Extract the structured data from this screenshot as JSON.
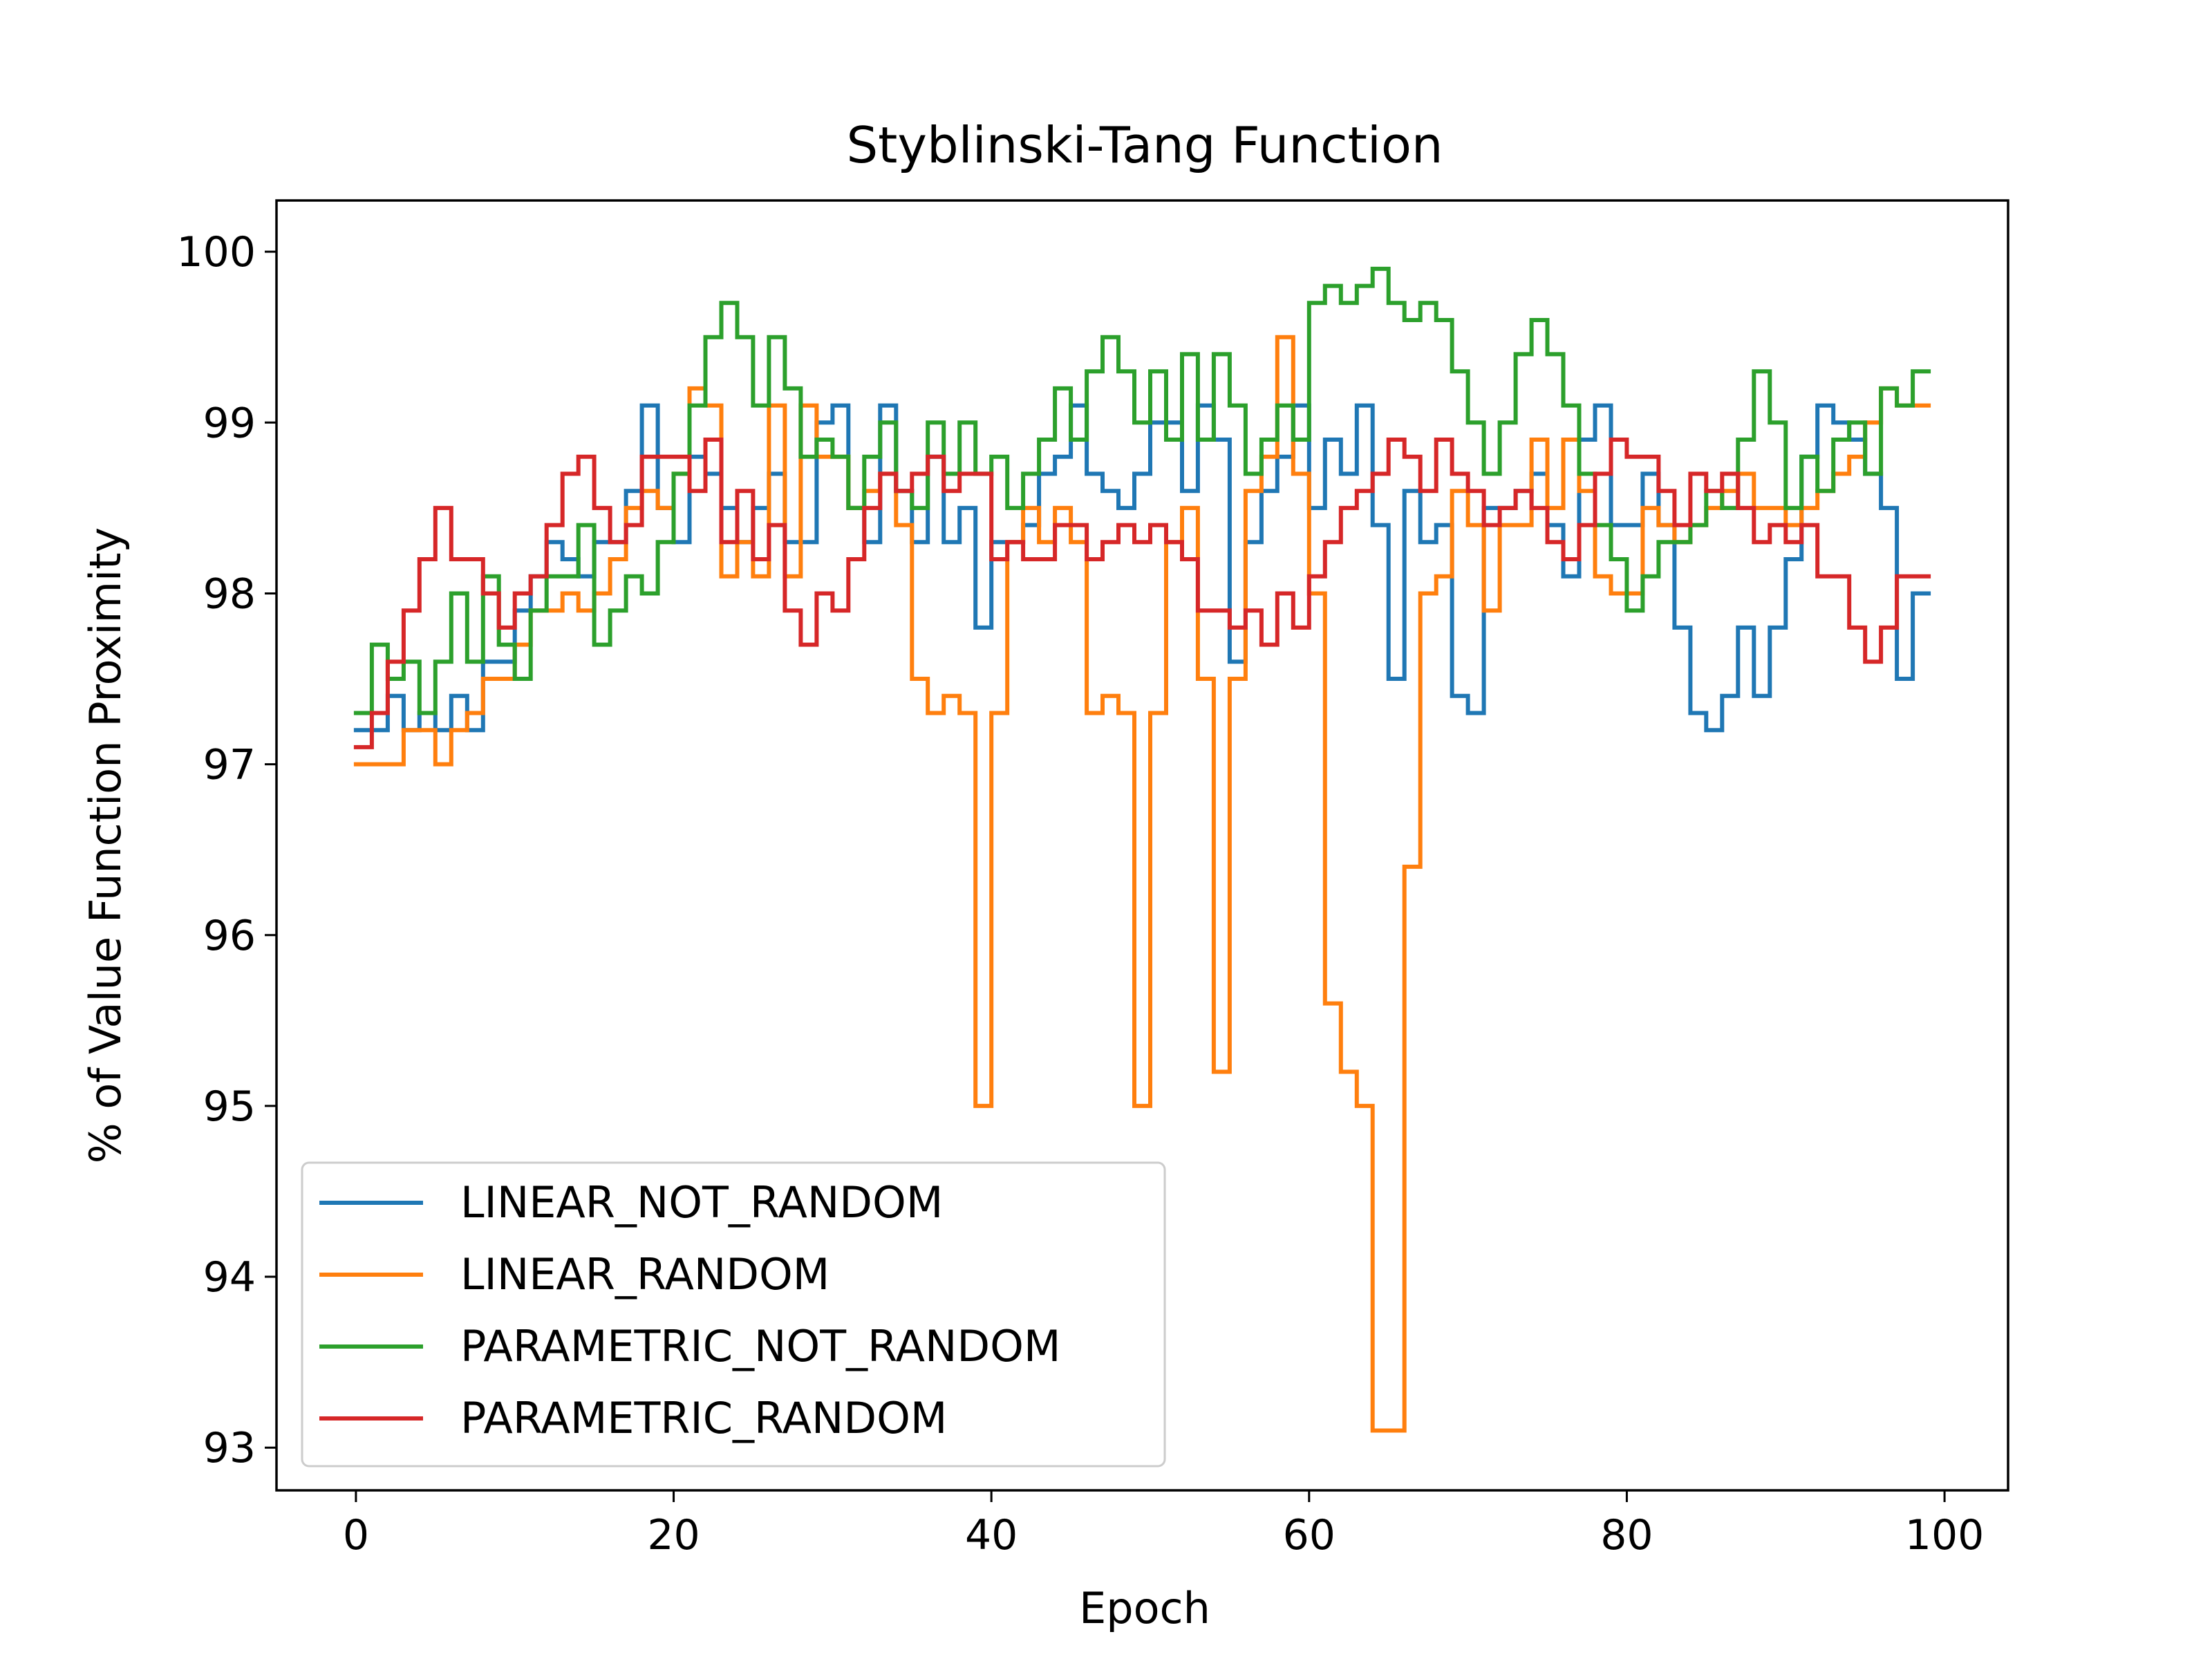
{
  "chart_data": {
    "type": "line",
    "step": true,
    "title": "Styblinski-Tang Function",
    "xlabel": "Epoch",
    "ylabel": "% of Value Function Proximity",
    "xlim": [
      -5,
      104
    ],
    "ylim": [
      92.75,
      100.3
    ],
    "x_ticks": [
      0,
      20,
      40,
      60,
      80,
      100
    ],
    "y_ticks": [
      93,
      94,
      95,
      96,
      97,
      98,
      99,
      100
    ],
    "grid": false,
    "legend_position": "lower-left",
    "series": [
      {
        "name": "LINEAR_NOT_RANDOM",
        "color": "#1f77b4",
        "values": [
          97.2,
          97.2,
          97.4,
          97.2,
          97.3,
          97.2,
          97.4,
          97.2,
          97.6,
          97.6,
          97.9,
          98.1,
          98.3,
          98.2,
          98.1,
          98.3,
          98.3,
          98.6,
          99.1,
          98.5,
          98.3,
          98.8,
          98.7,
          98.5,
          98.3,
          98.5,
          98.7,
          98.3,
          98.3,
          99.0,
          99.1,
          98.5,
          98.3,
          99.1,
          98.6,
          98.3,
          98.8,
          98.3,
          98.5,
          97.8,
          98.3,
          98.3,
          98.4,
          98.7,
          98.8,
          99.1,
          98.7,
          98.6,
          98.5,
          98.7,
          99.0,
          99.0,
          98.6,
          99.1,
          98.9,
          97.6,
          98.3,
          98.6,
          98.8,
          99.1,
          98.5,
          98.9,
          98.7,
          99.1,
          98.4,
          97.5,
          98.6,
          98.3,
          98.4,
          97.4,
          97.3,
          98.5,
          98.5,
          98.6,
          98.7,
          98.4,
          98.1,
          98.9,
          99.1,
          98.4,
          98.4,
          98.7,
          98.4,
          97.8,
          97.3,
          97.2,
          97.4,
          97.8,
          97.4,
          97.8,
          98.2,
          98.8,
          99.1,
          99.0,
          98.9,
          98.7,
          98.5,
          97.5,
          98.0
        ],
        "x_start": 0
      },
      {
        "name": "LINEAR_RANDOM",
        "color": "#ff7f0e",
        "values": [
          97.0,
          97.0,
          97.0,
          97.2,
          97.2,
          97.0,
          97.2,
          97.3,
          97.5,
          97.5,
          97.7,
          97.9,
          97.9,
          98.0,
          97.9,
          98.0,
          98.2,
          98.5,
          98.6,
          98.5,
          98.7,
          99.2,
          99.1,
          98.1,
          98.3,
          98.1,
          99.1,
          98.1,
          99.1,
          98.8,
          98.8,
          98.5,
          98.6,
          98.7,
          98.4,
          97.5,
          97.3,
          97.4,
          97.3,
          95.0,
          97.3,
          98.3,
          98.5,
          98.3,
          98.5,
          98.3,
          97.3,
          97.4,
          97.3,
          95.0,
          97.3,
          98.3,
          98.5,
          97.5,
          95.2,
          97.5,
          98.6,
          98.8,
          99.5,
          98.7,
          98.0,
          95.6,
          95.2,
          95.0,
          93.1,
          93.1,
          96.4,
          98.0,
          98.1,
          98.6,
          98.4,
          97.9,
          98.4,
          98.4,
          98.9,
          98.5,
          98.9,
          98.6,
          98.1,
          98.0,
          98.0,
          98.5,
          98.4,
          98.3,
          98.4,
          98.5,
          98.6,
          98.7,
          98.5,
          98.5,
          98.4,
          98.5,
          98.6,
          98.7,
          98.8,
          99.0,
          99.2,
          99.1,
          99.1
        ],
        "x_start": 0
      },
      {
        "name": "PARAMETRIC_NOT_RANDOM",
        "color": "#2ca02c",
        "values": [
          97.3,
          97.7,
          97.5,
          97.6,
          97.3,
          97.6,
          98.0,
          97.6,
          98.1,
          97.7,
          97.5,
          97.9,
          98.1,
          98.1,
          98.4,
          97.7,
          97.9,
          98.1,
          98.0,
          98.3,
          98.7,
          99.1,
          99.5,
          99.7,
          99.5,
          99.1,
          99.5,
          99.2,
          98.8,
          98.9,
          98.8,
          98.5,
          98.8,
          99.0,
          98.6,
          98.5,
          99.0,
          98.7,
          99.0,
          98.7,
          98.8,
          98.5,
          98.7,
          98.9,
          99.2,
          98.9,
          99.3,
          99.5,
          99.3,
          99.0,
          99.3,
          98.9,
          99.4,
          98.9,
          99.4,
          99.1,
          98.7,
          98.9,
          99.1,
          98.9,
          99.7,
          99.8,
          99.7,
          99.8,
          99.9,
          99.7,
          99.6,
          99.7,
          99.6,
          99.3,
          99.0,
          98.7,
          99.0,
          99.4,
          99.6,
          99.4,
          99.1,
          98.7,
          98.4,
          98.2,
          97.9,
          98.1,
          98.3,
          98.3,
          98.4,
          98.6,
          98.5,
          98.9,
          99.3,
          99.0,
          98.5,
          98.8,
          98.6,
          98.9,
          99.0,
          98.7,
          99.2,
          99.1,
          99.3
        ],
        "x_start": 0
      },
      {
        "name": "PARAMETRIC_RANDOM",
        "color": "#d62728",
        "values": [
          97.1,
          97.3,
          97.6,
          97.9,
          98.2,
          98.5,
          98.2,
          98.2,
          98.0,
          97.8,
          98.0,
          98.1,
          98.4,
          98.7,
          98.8,
          98.5,
          98.3,
          98.4,
          98.8,
          98.8,
          98.8,
          98.6,
          98.9,
          98.3,
          98.6,
          98.2,
          98.4,
          97.9,
          97.7,
          98.0,
          97.9,
          98.2,
          98.5,
          98.7,
          98.6,
          98.7,
          98.8,
          98.6,
          98.7,
          98.7,
          98.2,
          98.3,
          98.2,
          98.2,
          98.4,
          98.4,
          98.2,
          98.3,
          98.4,
          98.3,
          98.4,
          98.3,
          98.2,
          97.9,
          97.9,
          97.8,
          97.9,
          97.7,
          98.0,
          97.8,
          98.1,
          98.3,
          98.5,
          98.6,
          98.7,
          98.9,
          98.8,
          98.6,
          98.9,
          98.7,
          98.6,
          98.4,
          98.5,
          98.6,
          98.5,
          98.3,
          98.2,
          98.4,
          98.7,
          98.9,
          98.8,
          98.8,
          98.6,
          98.4,
          98.7,
          98.6,
          98.7,
          98.5,
          98.3,
          98.4,
          98.3,
          98.4,
          98.1,
          98.1,
          97.8,
          97.6,
          97.8,
          98.1,
          98.1
        ],
        "x_start": 0
      }
    ]
  }
}
